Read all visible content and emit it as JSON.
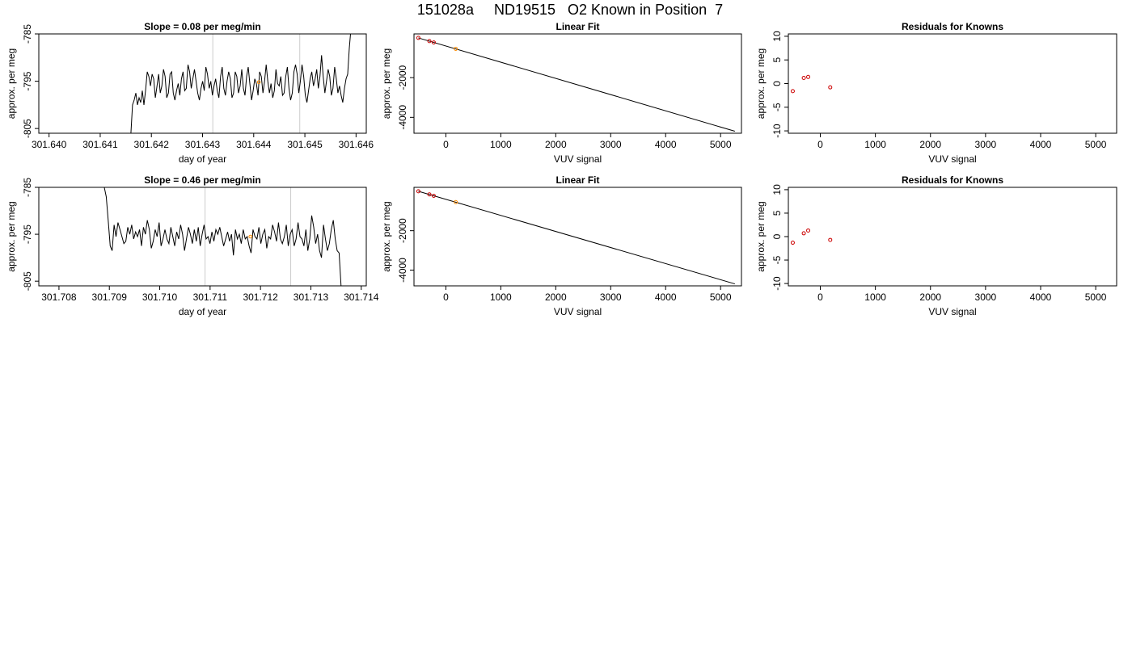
{
  "figure": {
    "title": "151028a     ND19515   O2 Known in Position  7"
  },
  "colors": {
    "line": "#000000",
    "grid_vertical": "#cccccc",
    "known_points": "#cc0000",
    "sample_point": "#ff8c00"
  },
  "chart_data": [
    {
      "id": "time-series-1",
      "type": "line",
      "title": "Slope =  0.08  per meg/min",
      "xlabel": "day of year",
      "ylabel": "approx. per meg",
      "xlim": [
        301.6398,
        301.6462
      ],
      "ylim": [
        -806,
        -785
      ],
      "x_ticks": [
        301.64,
        301.641,
        301.642,
        301.643,
        301.644,
        301.645,
        301.646
      ],
      "x_tick_labels": [
        "301.640",
        "301.641",
        "301.642",
        "301.643",
        "301.644",
        "301.645",
        "301.646"
      ],
      "y_ticks": [
        -785,
        -795,
        -805
      ],
      "y_tick_labels": [
        "-785",
        "-795",
        "-805"
      ],
      "vertical_lines": [
        301.6432,
        301.6449
      ],
      "marker": {
        "x": 301.6441,
        "y": -795.2
      },
      "series": [
        {
          "x_start": 301.6416,
          "x_end": 301.6459,
          "values": [
            -806,
            -800,
            -799,
            -797.5,
            -800,
            -798.5,
            -799.5,
            -797,
            -800,
            -797,
            -793,
            -794,
            -796,
            -793.5,
            -794.5,
            -798.5,
            -796,
            -793.5,
            -797.5,
            -796,
            -792.5,
            -794,
            -798.5,
            -797.5,
            -793.5,
            -793,
            -797.5,
            -799,
            -797,
            -795.5,
            -798,
            -794.5,
            -793,
            -797,
            -796.5,
            -791.5,
            -793,
            -796.5,
            -794.5,
            -792.5,
            -795,
            -797.5,
            -799,
            -796.5,
            -795,
            -797,
            -792,
            -793.5,
            -796.5,
            -795,
            -798,
            -796,
            -794.5,
            -797,
            -798.5,
            -794,
            -792,
            -796.5,
            -798,
            -795,
            -793,
            -794.5,
            -798.5,
            -797.5,
            -793,
            -794,
            -797.5,
            -796,
            -792.5,
            -796.5,
            -798,
            -794,
            -792,
            -795.5,
            -799,
            -797,
            -794.5,
            -795.5,
            -798,
            -793,
            -794,
            -797.5,
            -795,
            -791.5,
            -795,
            -797.5,
            -795.5,
            -798.5,
            -797,
            -792.5,
            -795.5,
            -796,
            -794,
            -798,
            -797.5,
            -794,
            -792,
            -796.5,
            -799,
            -797.5,
            -793,
            -791.5,
            -793.5,
            -797.5,
            -795,
            -791.5,
            -794,
            -798,
            -799.5,
            -797,
            -794.5,
            -793,
            -796,
            -794.5,
            -792.5,
            -796.5,
            -794,
            -789.5,
            -794,
            -797.5,
            -795,
            -792.5,
            -794,
            -798,
            -796.5,
            -792,
            -794.5,
            -797.5,
            -796,
            -798,
            -799.5,
            -796.5,
            -794.5,
            -793.5,
            -788,
            -784
          ]
        }
      ]
    },
    {
      "id": "linear-fit-1",
      "type": "scatter",
      "title": "Linear Fit",
      "xlabel": "VUV signal",
      "ylabel": "approx. per meg",
      "xlim": [
        -580,
        5380
      ],
      "ylim": [
        -4800,
        200
      ],
      "x_ticks": [
        0,
        1000,
        2000,
        3000,
        4000,
        5000
      ],
      "x_tick_labels": [
        "0",
        "1000",
        "2000",
        "3000",
        "4000",
        "5000"
      ],
      "y_ticks": [
        -2000,
        -4000
      ],
      "y_tick_labels": [
        "-2000",
        "-4000"
      ],
      "fit_line": [
        [
          -500,
          0
        ],
        [
          5260,
          -4700
        ]
      ],
      "known_points": [
        [
          -500,
          0
        ],
        [
          -300,
          -160
        ],
        [
          -220,
          -230
        ]
      ],
      "sample_points": [
        [
          180,
          -550
        ]
      ]
    },
    {
      "id": "residuals-1",
      "type": "scatter",
      "title": "Residuals for Knowns",
      "xlabel": "VUV signal",
      "ylabel": "approx. per meg",
      "xlim": [
        -580,
        5380
      ],
      "ylim": [
        -10.5,
        10.5
      ],
      "x_ticks": [
        0,
        1000,
        2000,
        3000,
        4000,
        5000
      ],
      "x_tick_labels": [
        "0",
        "1000",
        "2000",
        "3000",
        "4000",
        "5000"
      ],
      "y_ticks": [
        10,
        5,
        0,
        -5,
        -10
      ],
      "y_tick_labels": [
        "10",
        "5",
        "0",
        "-5",
        "-10"
      ],
      "known_points": [
        [
          -500,
          -1.6
        ],
        [
          -300,
          1.2
        ],
        [
          -220,
          1.4
        ],
        [
          180,
          -0.8
        ]
      ]
    },
    {
      "id": "time-series-2",
      "type": "line",
      "title": "Slope =  0.46  per meg/min",
      "xlabel": "day of year",
      "ylabel": "approx. per meg",
      "xlim": [
        301.7076,
        301.7141
      ],
      "ylim": [
        -806,
        -785
      ],
      "x_ticks": [
        301.708,
        301.709,
        301.71,
        301.711,
        301.712,
        301.713,
        301.714
      ],
      "x_tick_labels": [
        "301.708",
        "301.709",
        "301.710",
        "301.711",
        "301.712",
        "301.713",
        "301.714"
      ],
      "y_ticks": [
        -785,
        -795,
        -805
      ],
      "y_tick_labels": [
        "-785",
        "-795",
        "-805"
      ],
      "vertical_lines": [
        301.7109,
        301.7126
      ],
      "marker": {
        "x": 301.7118,
        "y": -795.5
      },
      "series": [
        {
          "x_start": 301.7089,
          "x_end": 301.7136,
          "values": [
            -785,
            -787,
            -792,
            -797.5,
            -798.5,
            -793,
            -795.5,
            -792.5,
            -794,
            -795.5,
            -797,
            -796.5,
            -793.5,
            -795,
            -793,
            -796,
            -794.5,
            -795.5,
            -794,
            -797.5,
            -793.5,
            -795,
            -792,
            -794,
            -798,
            -796.5,
            -794,
            -795.5,
            -792.5,
            -797.5,
            -796,
            -794,
            -796,
            -797,
            -793.5,
            -795.5,
            -797.5,
            -794.5,
            -796,
            -793,
            -795,
            -798.5,
            -796,
            -793.5,
            -795,
            -797,
            -794,
            -796.5,
            -793.5,
            -797.5,
            -795,
            -793,
            -796,
            -795.5,
            -797,
            -794.5,
            -796.5,
            -794,
            -795,
            -793.5,
            -795.5,
            -797.5,
            -796,
            -794.5,
            -796.5,
            -795,
            -799.5,
            -794,
            -796,
            -795,
            -797,
            -794,
            -796,
            -795.5,
            -797.5,
            -799,
            -794,
            -795.5,
            -796,
            -793.5,
            -797,
            -795,
            -794,
            -798,
            -795.5,
            -796,
            -793,
            -794.5,
            -796.5,
            -792.5,
            -796,
            -797,
            -795.5,
            -793,
            -797.5,
            -795,
            -794,
            -797.5,
            -796,
            -792.5,
            -795.5,
            -796,
            -797.5,
            -794,
            -798.5,
            -796,
            -791,
            -793.5,
            -797,
            -795,
            -798.5,
            -800,
            -793,
            -796,
            -798.5,
            -797,
            -794,
            -792,
            -796,
            -798.5,
            -799,
            -806
          ]
        }
      ]
    },
    {
      "id": "linear-fit-2",
      "type": "scatter",
      "title": "Linear Fit",
      "xlabel": "VUV signal",
      "ylabel": "approx. per meg",
      "xlim": [
        -580,
        5380
      ],
      "ylim": [
        -4800,
        200
      ],
      "x_ticks": [
        0,
        1000,
        2000,
        3000,
        4000,
        5000
      ],
      "x_tick_labels": [
        "0",
        "1000",
        "2000",
        "3000",
        "4000",
        "5000"
      ],
      "y_ticks": [
        -2000,
        -4000
      ],
      "y_tick_labels": [
        "-2000",
        "-4000"
      ],
      "fit_line": [
        [
          -500,
          0
        ],
        [
          5260,
          -4700
        ]
      ],
      "known_points": [
        [
          -500,
          0
        ],
        [
          -300,
          -160
        ],
        [
          -220,
          -230
        ]
      ],
      "sample_points": [
        [
          180,
          -550
        ]
      ]
    },
    {
      "id": "residuals-2",
      "type": "scatter",
      "title": "Residuals for Knowns",
      "xlabel": "VUV signal",
      "ylabel": "approx. per meg",
      "xlim": [
        -580,
        5380
      ],
      "ylim": [
        -10.5,
        10.5
      ],
      "x_ticks": [
        0,
        1000,
        2000,
        3000,
        4000,
        5000
      ],
      "x_tick_labels": [
        "0",
        "1000",
        "2000",
        "3000",
        "4000",
        "5000"
      ],
      "y_ticks": [
        10,
        5,
        0,
        -5,
        -10
      ],
      "y_tick_labels": [
        "10",
        "5",
        "0",
        "-5",
        "-10"
      ],
      "known_points": [
        [
          -500,
          -1.3
        ],
        [
          -300,
          0.7
        ],
        [
          -220,
          1.3
        ],
        [
          180,
          -0.7
        ]
      ]
    }
  ]
}
